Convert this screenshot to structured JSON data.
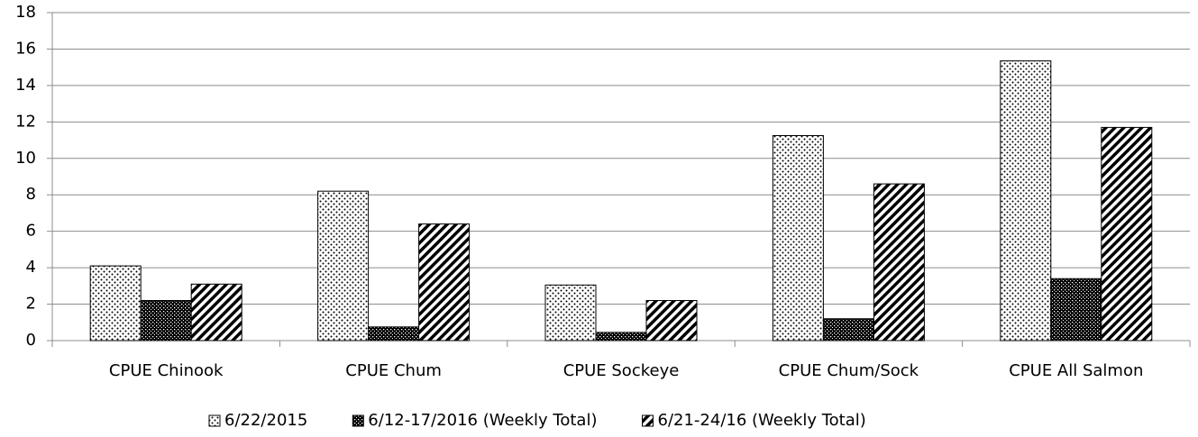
{
  "chart_data": {
    "type": "bar",
    "categories": [
      "CPUE Chinook",
      "CPUE Chum",
      "CPUE Sockeye",
      "CPUE Chum/Sock",
      "CPUE All Salmon"
    ],
    "series": [
      {
        "name": "6/22/2015",
        "color": "#000000",
        "pattern": "dots",
        "values": [
          4.1,
          8.2,
          3.05,
          11.25,
          15.35
        ]
      },
      {
        "name": "6/12-17/2016 (Weekly Total)",
        "color": "#000000",
        "pattern": "grid",
        "values": [
          2.2,
          0.75,
          0.45,
          1.2,
          3.4
        ]
      },
      {
        "name": "6/21-24/16 (Weekly Total)",
        "color": "#000000",
        "pattern": "hatch",
        "values": [
          3.1,
          6.4,
          2.2,
          8.6,
          11.7
        ]
      }
    ],
    "ylim": [
      0,
      18
    ],
    "yticks": [
      0,
      2,
      4,
      6,
      8,
      10,
      12,
      14,
      16,
      18
    ],
    "grid": true,
    "legend": "bottom"
  }
}
